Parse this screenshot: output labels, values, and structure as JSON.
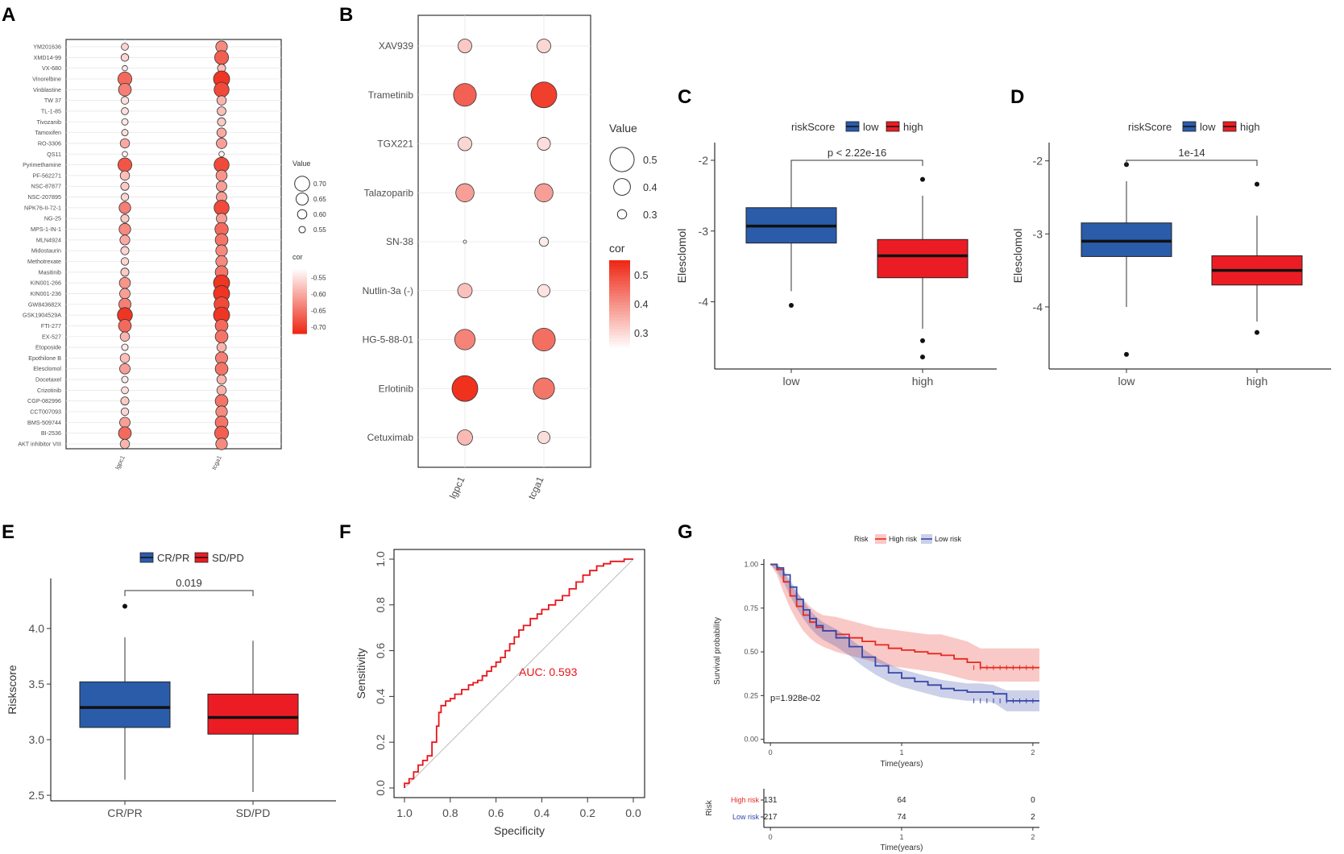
{
  "panel_labels": [
    "A",
    "B",
    "C",
    "D",
    "E",
    "F",
    "G"
  ],
  "colors": {
    "low": "#2a5caa",
    "high": "#ec1c24",
    "km_high": "#e8281f",
    "km_low": "#3547a8",
    "cor_high": "#ee2a17",
    "cor_low": "#ffffff",
    "roc": "#e8141a"
  },
  "chart_data": [
    {
      "panel": "A",
      "type": "scatter",
      "x_categories": [
        "lgpc1",
        "tcga1"
      ],
      "y_categories": [
        "YM201636",
        "XMD14-99",
        "VX-680",
        "Vinorelbine",
        "Vinblastine",
        "TW 37",
        "TL-1-85",
        "Tivozanib",
        "Tamoxifen",
        "RO-3306",
        "QS11",
        "Pyrimethamine",
        "PF-562271",
        "NSC-87877",
        "NSC-207895",
        "NPK76-II-72-1",
        "NG-25",
        "MPS-1-IN-1",
        "MLN4924",
        "Midostaurin",
        "Methotrexate",
        "Masitinib",
        "KIN001-266",
        "KIN001-236",
        "GW843682X",
        "GSK1904529A",
        "FTI-277",
        "EX-527",
        "Etoposide",
        "Epothilone B",
        "Elesclomol",
        "Docetaxel",
        "Crizotinib",
        "CGP-082996",
        "CCT007093",
        "BMS-509744",
        "BI-2536",
        "AKT inhibitor VIII"
      ],
      "value_lgpc1": [
        0.56,
        0.57,
        0.53,
        0.68,
        0.66,
        0.57,
        0.56,
        0.55,
        0.55,
        0.6,
        0.53,
        0.68,
        0.6,
        0.58,
        0.57,
        0.64,
        0.58,
        0.64,
        0.61,
        0.58,
        0.57,
        0.58,
        0.63,
        0.62,
        0.65,
        0.7,
        0.66,
        0.6,
        0.55,
        0.6,
        0.62,
        0.55,
        0.56,
        0.58,
        0.57,
        0.62,
        0.66,
        0.6
      ],
      "value_tcga1": [
        0.64,
        0.68,
        0.58,
        0.72,
        0.7,
        0.6,
        0.59,
        0.58,
        0.6,
        0.62,
        0.53,
        0.7,
        0.63,
        0.62,
        0.62,
        0.7,
        0.62,
        0.67,
        0.66,
        0.64,
        0.64,
        0.66,
        0.72,
        0.72,
        0.7,
        0.72,
        0.66,
        0.66,
        0.6,
        0.65,
        0.66,
        0.6,
        0.6,
        0.66,
        0.64,
        0.66,
        0.68,
        0.64
      ],
      "cor_lgpc1": [
        -0.56,
        -0.56,
        -0.54,
        -0.66,
        -0.64,
        -0.55,
        -0.55,
        -0.54,
        -0.55,
        -0.6,
        -0.53,
        -0.68,
        -0.58,
        -0.57,
        -0.56,
        -0.64,
        -0.57,
        -0.63,
        -0.6,
        -0.56,
        -0.56,
        -0.57,
        -0.62,
        -0.61,
        -0.64,
        -0.71,
        -0.66,
        -0.59,
        -0.54,
        -0.58,
        -0.61,
        -0.54,
        -0.55,
        -0.57,
        -0.56,
        -0.61,
        -0.66,
        -0.59
      ],
      "cor_tcga1": [
        -0.63,
        -0.67,
        -0.58,
        -0.71,
        -0.69,
        -0.59,
        -0.58,
        -0.57,
        -0.6,
        -0.61,
        -0.53,
        -0.69,
        -0.62,
        -0.61,
        -0.61,
        -0.69,
        -0.61,
        -0.66,
        -0.65,
        -0.63,
        -0.63,
        -0.65,
        -0.71,
        -0.71,
        -0.69,
        -0.71,
        -0.66,
        -0.65,
        -0.59,
        -0.64,
        -0.65,
        -0.59,
        -0.59,
        -0.65,
        -0.63,
        -0.65,
        -0.67,
        -0.63
      ],
      "legend": {
        "value_title": "Value",
        "value_labels": [
          "0.70",
          "0.65",
          "0.60",
          "0.55"
        ],
        "value_levels": [
          0.7,
          0.65,
          0.6,
          0.55
        ],
        "cor_title": "cor",
        "cor_labels": [
          "-0.55",
          "-0.60",
          "-0.65",
          "-0.70"
        ],
        "cor_range": [
          -0.72,
          -0.52
        ]
      }
    },
    {
      "panel": "B",
      "type": "scatter",
      "x_categories": [
        "lgpc1",
        "tcga1"
      ],
      "y_categories": [
        "XAV939",
        "Trametinib",
        "TGX221",
        "Talazoparib",
        "SN-38",
        "Nutlin-3a (-)",
        "HG-5-88-01",
        "Erlotinib",
        "Cetuximab"
      ],
      "value_lgpc1": [
        0.36,
        0.48,
        0.36,
        0.42,
        0.22,
        0.37,
        0.45,
        0.52,
        0.38
      ],
      "value_tcga1": [
        0.36,
        0.52,
        0.35,
        0.42,
        0.3,
        0.34,
        0.48,
        0.46,
        0.34
      ],
      "cor_lgpc1": [
        0.32,
        0.47,
        0.3,
        0.38,
        0.22,
        0.33,
        0.42,
        0.54,
        0.34
      ],
      "cor_tcga1": [
        0.3,
        0.52,
        0.29,
        0.38,
        0.27,
        0.28,
        0.45,
        0.44,
        0.29
      ],
      "legend": {
        "value_title": "Value",
        "value_labels": [
          "0.5",
          "0.4",
          "0.3"
        ],
        "value_levels": [
          0.5,
          0.4,
          0.3
        ],
        "cor_title": "cor",
        "cor_labels": [
          "0.5",
          "0.4",
          "0.3"
        ],
        "cor_range": [
          0.24,
          0.55
        ]
      }
    },
    {
      "panel": "C",
      "type": "box",
      "legend_title": "riskScore",
      "groups": [
        "low",
        "high"
      ],
      "ylabel": "Elesclomol",
      "ylim": [
        -4.95,
        -1.75
      ],
      "yticks": [
        -2,
        -3,
        -4
      ],
      "ytick_labels": [
        "-2",
        "-3",
        "-4"
      ],
      "boxes": [
        {
          "group": "low",
          "q1": -3.17,
          "median": -2.93,
          "q3": -2.67,
          "whisker_low": -3.85,
          "whisker_high": -2.08,
          "outliers": [
            -4.05
          ]
        },
        {
          "group": "high",
          "q1": -3.66,
          "median": -3.35,
          "q3": -3.12,
          "whisker_low": -4.38,
          "whisker_high": -2.5,
          "outliers": [
            -2.27,
            -4.55,
            -4.78
          ]
        }
      ],
      "annotation": "p < 2.22e-16"
    },
    {
      "panel": "D",
      "type": "box",
      "legend_title": "riskScore",
      "groups": [
        "low",
        "high"
      ],
      "ylabel": "Elesclomol",
      "ylim": [
        -4.85,
        -1.75
      ],
      "yticks": [
        -2,
        -3,
        -4
      ],
      "ytick_labels": [
        "-2",
        "-3",
        "-4"
      ],
      "boxes": [
        {
          "group": "low",
          "q1": -3.31,
          "median": -3.1,
          "q3": -2.85,
          "whisker_low": -4.0,
          "whisker_high": -2.28,
          "outliers": [
            -2.05,
            -4.65
          ]
        },
        {
          "group": "high",
          "q1": -3.7,
          "median": -3.5,
          "q3": -3.3,
          "whisker_low": -4.2,
          "whisker_high": -2.75,
          "outliers": [
            -2.32,
            -4.35
          ]
        }
      ],
      "annotation": "1e-14"
    },
    {
      "panel": "E",
      "type": "box",
      "legend_title": "",
      "groups": [
        "CR/PR",
        "SD/PD"
      ],
      "ylabel": "Riskscore",
      "ylim": [
        2.45,
        4.45
      ],
      "yticks": [
        4.0,
        3.5,
        3.0,
        2.5
      ],
      "ytick_labels": [
        "4.0",
        "3.5",
        "3.0",
        "2.5"
      ],
      "boxes": [
        {
          "group": "CR/PR",
          "q1": 3.11,
          "median": 3.29,
          "q3": 3.52,
          "whisker_low": 2.64,
          "whisker_high": 3.92,
          "outliers": [
            4.2
          ]
        },
        {
          "group": "SD/PD",
          "q1": 3.05,
          "median": 3.2,
          "q3": 3.41,
          "whisker_low": 2.53,
          "whisker_high": 3.89,
          "outliers": []
        }
      ],
      "annotation": "0.019"
    },
    {
      "panel": "F",
      "type": "line",
      "xlabel": "Specificity",
      "ylabel": "Sensitivity",
      "xlim": [
        1.0,
        0.0
      ],
      "ylim": [
        0.0,
        1.0
      ],
      "xticks": [
        1.0,
        0.8,
        0.6,
        0.4,
        0.2,
        0.0
      ],
      "xtick_labels": [
        "1.0",
        "0.8",
        "0.6",
        "0.4",
        "0.2",
        "0.0"
      ],
      "yticks": [
        0.0,
        0.2,
        0.4,
        0.6,
        0.8,
        1.0
      ],
      "ytick_labels": [
        "0.0",
        "0.2",
        "0.4",
        "0.6",
        "0.8",
        "1.0"
      ],
      "auc_label": "AUC: 0.593",
      "roc_specificity": [
        1.0,
        1.0,
        0.98,
        0.98,
        0.96,
        0.96,
        0.94,
        0.94,
        0.92,
        0.92,
        0.9,
        0.9,
        0.88,
        0.88,
        0.86,
        0.86,
        0.85,
        0.85,
        0.84,
        0.84,
        0.82,
        0.82,
        0.8,
        0.8,
        0.78,
        0.78,
        0.75,
        0.75,
        0.72,
        0.72,
        0.7,
        0.7,
        0.68,
        0.68,
        0.66,
        0.66,
        0.64,
        0.64,
        0.62,
        0.62,
        0.6,
        0.6,
        0.58,
        0.58,
        0.56,
        0.56,
        0.54,
        0.54,
        0.52,
        0.52,
        0.5,
        0.5,
        0.48,
        0.48,
        0.45,
        0.45,
        0.42,
        0.42,
        0.4,
        0.4,
        0.37,
        0.37,
        0.34,
        0.34,
        0.31,
        0.31,
        0.28,
        0.28,
        0.25,
        0.25,
        0.22,
        0.22,
        0.19,
        0.19,
        0.16,
        0.16,
        0.13,
        0.13,
        0.1,
        0.1,
        0.07,
        0.07,
        0.04,
        0.04,
        0.02,
        0.02,
        0.0
      ],
      "roc_sensitivity": [
        0.0,
        0.02,
        0.02,
        0.04,
        0.04,
        0.07,
        0.07,
        0.1,
        0.1,
        0.12,
        0.12,
        0.14,
        0.14,
        0.2,
        0.2,
        0.27,
        0.27,
        0.33,
        0.33,
        0.36,
        0.36,
        0.38,
        0.38,
        0.39,
        0.39,
        0.41,
        0.41,
        0.43,
        0.43,
        0.45,
        0.45,
        0.46,
        0.46,
        0.47,
        0.47,
        0.49,
        0.49,
        0.51,
        0.51,
        0.53,
        0.53,
        0.55,
        0.55,
        0.57,
        0.57,
        0.6,
        0.6,
        0.63,
        0.63,
        0.66,
        0.66,
        0.69,
        0.69,
        0.71,
        0.71,
        0.74,
        0.74,
        0.76,
        0.76,
        0.78,
        0.78,
        0.8,
        0.8,
        0.82,
        0.82,
        0.84,
        0.84,
        0.87,
        0.87,
        0.9,
        0.9,
        0.93,
        0.93,
        0.95,
        0.95,
        0.97,
        0.97,
        0.98,
        0.98,
        0.99,
        0.99,
        0.99,
        0.99,
        1.0,
        1.0,
        1.0,
        1.0
      ]
    },
    {
      "panel": "G",
      "type": "line",
      "legend_title": "Risk",
      "legend_entries": [
        "High risk",
        "Low risk"
      ],
      "xlabel": "Time(years)",
      "ylabel": "Survival probability",
      "xlim": [
        -0.05,
        2.05
      ],
      "ylim": [
        -0.02,
        1.03
      ],
      "xticks": [
        0,
        1,
        2
      ],
      "xtick_labels": [
        "0",
        "1",
        "2"
      ],
      "yticks": [
        0.0,
        0.25,
        0.5,
        0.75,
        1.0
      ],
      "ytick_labels": [
        "0.00",
        "0.25",
        "0.50",
        "0.75",
        "1.00"
      ],
      "pvalue_label": "p=1.928e-02",
      "series": [
        {
          "name": "High risk",
          "x": [
            0,
            0.05,
            0.1,
            0.15,
            0.2,
            0.25,
            0.3,
            0.35,
            0.4,
            0.5,
            0.6,
            0.7,
            0.8,
            0.9,
            1.0,
            1.1,
            1.2,
            1.3,
            1.4,
            1.5,
            1.6,
            1.7,
            1.8,
            1.9,
            2.05
          ],
          "y": [
            1.0,
            0.97,
            0.9,
            0.82,
            0.76,
            0.71,
            0.67,
            0.64,
            0.62,
            0.6,
            0.58,
            0.56,
            0.54,
            0.52,
            0.51,
            0.5,
            0.49,
            0.48,
            0.46,
            0.44,
            0.41,
            0.41,
            0.41,
            0.41,
            0.41
          ],
          "lower": [
            1.0,
            0.94,
            0.84,
            0.75,
            0.68,
            0.62,
            0.58,
            0.55,
            0.53,
            0.5,
            0.48,
            0.46,
            0.44,
            0.42,
            0.41,
            0.4,
            0.39,
            0.38,
            0.36,
            0.34,
            0.33,
            0.33,
            0.33,
            0.33,
            0.33
          ],
          "upper": [
            1.0,
            1.0,
            0.96,
            0.89,
            0.84,
            0.8,
            0.76,
            0.73,
            0.71,
            0.7,
            0.68,
            0.66,
            0.64,
            0.63,
            0.62,
            0.61,
            0.6,
            0.6,
            0.58,
            0.56,
            0.52,
            0.52,
            0.52,
            0.52,
            0.52
          ]
        },
        {
          "name": "Low risk",
          "x": [
            0,
            0.05,
            0.1,
            0.15,
            0.2,
            0.25,
            0.3,
            0.35,
            0.4,
            0.5,
            0.6,
            0.7,
            0.8,
            0.9,
            1.0,
            1.1,
            1.2,
            1.3,
            1.4,
            1.5,
            1.6,
            1.7,
            1.8,
            1.9,
            2.05
          ],
          "y": [
            1.0,
            0.98,
            0.94,
            0.87,
            0.8,
            0.74,
            0.69,
            0.65,
            0.62,
            0.58,
            0.53,
            0.47,
            0.42,
            0.38,
            0.35,
            0.33,
            0.31,
            0.29,
            0.28,
            0.27,
            0.27,
            0.26,
            0.22,
            0.22,
            0.22
          ],
          "lower": [
            1.0,
            0.96,
            0.9,
            0.82,
            0.75,
            0.69,
            0.64,
            0.6,
            0.57,
            0.53,
            0.48,
            0.42,
            0.37,
            0.33,
            0.3,
            0.28,
            0.26,
            0.24,
            0.23,
            0.22,
            0.22,
            0.21,
            0.16,
            0.16,
            0.16
          ],
          "upper": [
            1.0,
            1.0,
            0.97,
            0.91,
            0.85,
            0.79,
            0.74,
            0.7,
            0.67,
            0.63,
            0.58,
            0.52,
            0.47,
            0.43,
            0.4,
            0.38,
            0.36,
            0.34,
            0.33,
            0.32,
            0.32,
            0.31,
            0.28,
            0.28,
            0.28
          ]
        }
      ],
      "risk_table": {
        "title": "Risk",
        "rows": [
          {
            "label": "High risk",
            "counts": [
              "131",
              "64",
              "0"
            ]
          },
          {
            "label": "Low risk",
            "counts": [
              "217",
              "74",
              "2"
            ]
          }
        ],
        "xticks": [
          "0",
          "1",
          "2"
        ],
        "xlabel": "Time(years)"
      }
    }
  ]
}
